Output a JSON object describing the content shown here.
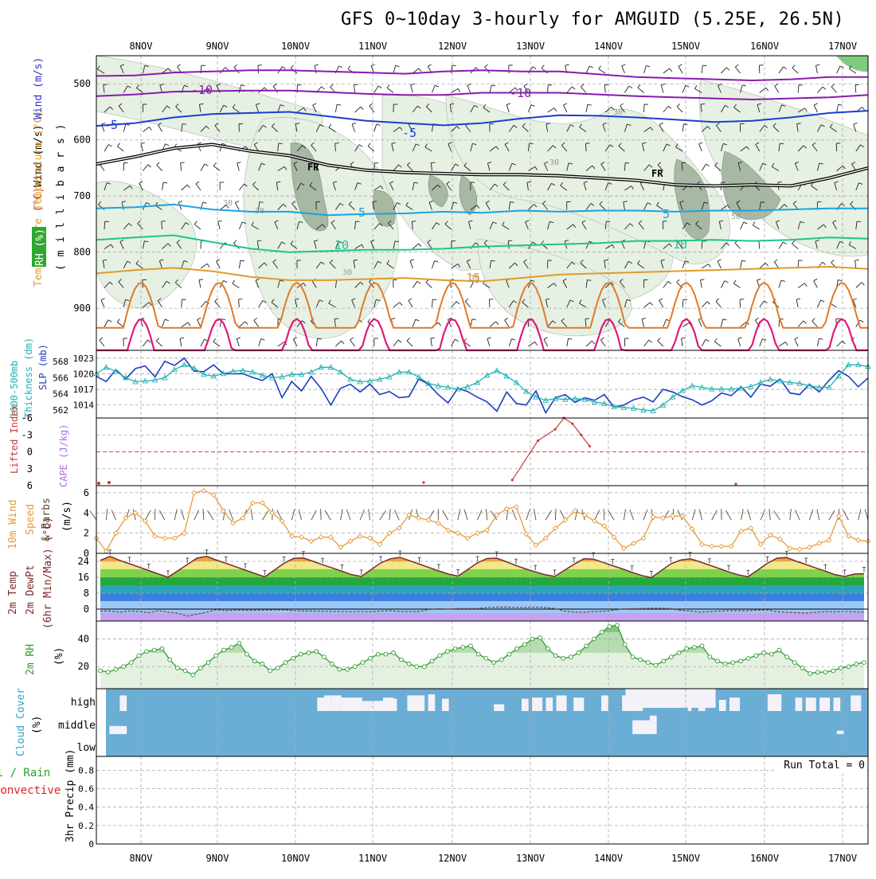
{
  "title": "GFS 0~10day 3-hourly for AMGUID (5.25E, 26.5N)",
  "chart_data": [
    {
      "id": "upper_air",
      "type": "contour",
      "x_labels": [
        "8NOV",
        "9NOV",
        "10NOV",
        "11NOV",
        "12NOV",
        "13NOV",
        "14NOV",
        "15NOV",
        "16NOV",
        "17NOV"
      ],
      "ylabel_parts": [
        "RH (%)",
        "Temperature (°C)",
        "Wind (m/s)",
        "( m i l l i b a r s )"
      ],
      "ylim": [
        975,
        450
      ],
      "yticks": [
        500,
        600,
        700,
        800,
        900
      ],
      "colors": {
        "rh_light": "#e6f0e3",
        "rh_mid": "#c4d8c0",
        "rh_dark": "#a7b8a3"
      },
      "rh_labels": [
        "30",
        "30",
        "30",
        "30",
        "30",
        "30",
        "50"
      ],
      "isotherms": [
        {
          "label": "-10",
          "color": "#8a1ab0",
          "values": [
            486,
            485,
            480,
            478,
            476,
            476,
            478,
            480,
            482,
            478,
            476,
            478,
            478,
            483,
            488,
            490,
            492,
            494,
            492,
            488,
            488
          ]
        },
        {
          "label": "-10",
          "color": "#8a1ab0",
          "values": [
            522,
            519,
            514,
            513,
            512,
            512,
            515,
            518,
            520,
            520,
            516,
            516,
            516,
            519,
            522,
            524,
            526,
            528,
            526,
            524,
            520
          ]
        },
        {
          "label": "-5",
          "color": "#1c3ed0",
          "values": [
            575,
            570,
            560,
            554,
            552,
            550,
            558,
            566,
            570,
            574,
            570,
            562,
            556,
            557,
            560,
            564,
            568,
            566,
            560,
            552,
            548
          ]
        },
        {
          "label": "FR",
          "color": "#000000",
          "values": [
            643,
            630,
            615,
            608,
            620,
            628,
            645,
            654,
            658,
            660,
            662,
            662,
            664,
            668,
            672,
            680,
            682,
            680,
            682,
            668,
            650
          ]
        },
        {
          "label": "5",
          "color": "#1aa3e0",
          "values": [
            722,
            720,
            715,
            724,
            728,
            728,
            734,
            732,
            731,
            728,
            730,
            726,
            728,
            726,
            726,
            728,
            726,
            726,
            724,
            722,
            722
          ]
        },
        {
          "label": "10",
          "color": "#1ec48e",
          "values": [
            778,
            774,
            770,
            782,
            794,
            800,
            798,
            796,
            796,
            794,
            790,
            788,
            786,
            784,
            780,
            780,
            778,
            780,
            778,
            774,
            776
          ]
        },
        {
          "label": "15",
          "color": "#e09a2a",
          "values": [
            838,
            832,
            828,
            834,
            844,
            850,
            850,
            848,
            846,
            850,
            852,
            846,
            840,
            838,
            836,
            834,
            832,
            830,
            828,
            826,
            830
          ]
        }
      ]
    },
    {
      "id": "slp_thickness",
      "type": "line",
      "ylabel_parts": [
        "1000-500mb",
        "Thickness (dm)",
        "SLP (mb)"
      ],
      "slp_ticks": [
        1014,
        1017,
        1020,
        1023
      ],
      "slp_range": [
        1011.5,
        1024.5
      ],
      "thk_ticks": [
        562,
        564,
        566,
        568
      ],
      "thk_range": [
        561,
        569.4
      ],
      "series": [
        {
          "name": "SLP",
          "color": "#1a3fc0",
          "values": [
            1019.5,
            1018.5,
            1020.8,
            1019,
            1021,
            1021.5,
            1019.4,
            1022.4,
            1021.6,
            1023,
            1020.5,
            1020.4,
            1021.7,
            1020,
            1020,
            1020,
            1019.3,
            1018.7,
            1020,
            1015.4,
            1018.5,
            1016.7,
            1019.5,
            1017.2,
            1014,
            1017.2,
            1018,
            1016.5,
            1018,
            1016,
            1016.6,
            1015.4,
            1015.6,
            1019,
            1018,
            1016,
            1014.4,
            1017.2,
            1016.6,
            1015.5,
            1014.6,
            1012.8,
            1016.5,
            1014.3,
            1014,
            1016.7,
            1012.5,
            1015.4,
            1016,
            1014.5,
            1015.4,
            1014.9,
            1016,
            1013.6,
            1014,
            1015,
            1015.5,
            1014.6,
            1017,
            1016.5,
            1015.6,
            1015,
            1014,
            1014.8,
            1016.3,
            1015.8,
            1017.5,
            1015.5,
            1018,
            1017.6,
            1019,
            1016.3,
            1016,
            1018,
            1016.5,
            1018.7,
            1020.6,
            1019.5,
            1017.5,
            1019.2
          ]
        },
        {
          "name": "Thickness",
          "color": "#22b2b2",
          "values": [
            566.5,
            567.3,
            566.8,
            566.0,
            565.5,
            565.6,
            565.7,
            566.0,
            567.0,
            567.6,
            567.2,
            566.4,
            566.2,
            566.5,
            566.8,
            566.9,
            566.7,
            566.3,
            566.0,
            566.1,
            566.4,
            566.4,
            566.7,
            567.3,
            567.3,
            566.7,
            565.8,
            565.5,
            565.6,
            565.8,
            566.1,
            566.7,
            566.7,
            566.1,
            565.3,
            565.0,
            564.8,
            564.6,
            564.9,
            565.4,
            566.3,
            566.9,
            566.2,
            565.4,
            564.3,
            563.6,
            563.2,
            563.4,
            563.3,
            563.4,
            563.3,
            563.0,
            562.8,
            562.4,
            562.3,
            562.2,
            562.0,
            561.9,
            562.6,
            563.6,
            564.4,
            565.0,
            564.8,
            564.6,
            564.6,
            564.6,
            564.7,
            564.9,
            565.4,
            565.8,
            565.6,
            565.4,
            565.3,
            565.0,
            564.8,
            564.8,
            566.2,
            567.6,
            567.6,
            567.4
          ]
        }
      ]
    },
    {
      "id": "cape_li",
      "type": "line",
      "ylabel_parts": [
        "CAPE (J/kg)",
        "Lifted Index"
      ],
      "li_ticks": [
        "-6",
        "-3",
        "0",
        "3",
        "6"
      ],
      "li_range": [
        -6,
        6
      ],
      "li_curve": [
        [
          -6,
          5
        ],
        [
          -3,
          -2
        ],
        [
          -1,
          -4
        ],
        [
          0,
          -6
        ],
        [
          1,
          -5
        ],
        [
          2,
          -3
        ],
        [
          3,
          -1
        ]
      ],
      "li_note": "mostly positive (>6), brief dip near 13NOV 18Z",
      "colors": {
        "cape": "#b070e0",
        "li": "#c83a3a"
      }
    },
    {
      "id": "wind10m",
      "type": "line",
      "ylabel_parts": [
        "10m Wind",
        "Speed",
        "& Barbs",
        "(m/s)"
      ],
      "yticks": [
        0,
        2,
        4,
        6
      ],
      "ylim": [
        0,
        6.7
      ],
      "series": [
        {
          "name": "speed",
          "color": "#e69a3a",
          "values": [
            1.5,
            0.2,
            2.0,
            3.5,
            4.0,
            3.2,
            1.7,
            1.5,
            1.5,
            2.0,
            6.0,
            6.2,
            5.8,
            4.2,
            3.0,
            3.5,
            5.0,
            5.0,
            4.0,
            3.2,
            1.7,
            1.6,
            1.2,
            1.6,
            1.6,
            0.6,
            1.2,
            1.7,
            1.5,
            0.9,
            2.0,
            2.5,
            3.8,
            3.5,
            3.3,
            3.0,
            2.3,
            2.0,
            1.5,
            2.0,
            2.3,
            3.8,
            4.4,
            4.6,
            1.9,
            0.8,
            1.5,
            2.5,
            3.3,
            4.2,
            3.8,
            3.2,
            2.7,
            1.6,
            0.5,
            1.0,
            1.5,
            3.6,
            3.5,
            3.7,
            3.7,
            2.4,
            0.9,
            0.7,
            0.7,
            0.7,
            2.2,
            2.5,
            0.9,
            1.8,
            1.4,
            0.5,
            0.4,
            0.6,
            1.0,
            1.3,
            3.7,
            1.7,
            1.3,
            1.2
          ]
        }
      ]
    },
    {
      "id": "temp2m",
      "type": "area",
      "ylabel_parts": [
        "2m Temp",
        "2m DewPt",
        "(6hr Min/Max) (°C)"
      ],
      "yticks": [
        0,
        8,
        16,
        24
      ],
      "ylim": [
        -6,
        28
      ],
      "bands": [
        {
          "from": -6,
          "to": -2,
          "color": "#c6a2f0"
        },
        {
          "from": -2,
          "to": 4,
          "color": "#9bc8f7"
        },
        {
          "from": 4,
          "to": 8,
          "color": "#3b7fe0"
        },
        {
          "from": 8,
          "to": 12,
          "color": "#2aa3b8"
        },
        {
          "from": 12,
          "to": 16,
          "color": "#23a83c"
        },
        {
          "from": 16,
          "to": 20,
          "color": "#7fd24b"
        },
        {
          "from": 20,
          "to": 24,
          "color": "#f0e88a"
        },
        {
          "from": 24,
          "to": 28,
          "color": "#f0a442"
        }
      ],
      "temp": [
        24.5,
        26.5,
        24.5,
        22.8,
        21.1,
        19.4,
        17.7,
        16.0,
        19.2,
        22.4,
        25.6,
        26.5,
        24.6,
        23.0,
        21.3,
        19.6,
        17.9,
        16.2,
        19.6,
        23.0,
        25.5,
        25.7,
        24.0,
        22.3,
        20.7,
        19.0,
        17.3,
        16.4,
        19.8,
        23.2,
        25.3,
        26.0,
        24.3,
        22.6,
        20.9,
        19.2,
        17.6,
        16.6,
        19.9,
        23.2,
        25.4,
        25.6,
        23.8,
        21.9,
        20.2,
        18.7,
        17.3,
        16.4,
        19.5,
        22.5,
        25.3,
        25.1,
        23.5,
        21.8,
        20.2,
        18.5,
        16.9,
        15.8,
        19.3,
        22.7,
        24.6,
        25.3,
        23.8,
        22.1,
        20.4,
        18.7,
        17.2,
        16.3,
        19.6,
        23.0,
        25.6,
        25.9,
        24.0,
        22.4,
        20.7,
        19.1,
        17.3,
        16.4,
        17.6,
        17.8
      ],
      "dew": [
        -1,
        -1,
        -1.5,
        -1,
        -1.2,
        -1.8,
        -0.8,
        -1.5,
        -2,
        -3.5,
        -2.5,
        -1.5,
        -0.3,
        -0.8,
        -0.5,
        -0.6,
        -0.6,
        -0.5,
        -0.4,
        -0.4,
        -0.7,
        -1,
        -1,
        -1.1,
        -1.2,
        -1.2,
        -1.3,
        -1.2,
        -1.3,
        -1,
        -0.8,
        -1.2,
        -1.2,
        -1.2,
        -0.2,
        0.2,
        0,
        0.3,
        0.3,
        0.3,
        0.8,
        1,
        1,
        0.9,
        0.8,
        1,
        0.8,
        0.3,
        -1,
        -1.5,
        -1.6,
        -1.2,
        -1.2,
        -0.6,
        0.1,
        0.2,
        0.3,
        0.4,
        0.4,
        0.3,
        -0.6,
        -1,
        -1.5,
        -1.3,
        -1,
        -0.8,
        -0.8,
        -0.8,
        -0.5,
        -0.4,
        -1.3,
        -1.6,
        -1.8,
        -2,
        -1.6,
        -1.3,
        -1.4,
        -1.2,
        -1.4,
        -1.5
      ]
    },
    {
      "id": "rh2m",
      "type": "area",
      "ylabel_parts": [
        "2m RH",
        "(%)"
      ],
      "yticks": [
        20,
        40
      ],
      "ylim": [
        4,
        53
      ],
      "colors": {
        "rh_light": "#e4f1e1",
        "rh_mid": "#b7dcb2",
        "rh_dark": "#86c47f",
        "line": "#2e9a2e"
      },
      "values": [
        17,
        16,
        18,
        20,
        23,
        28,
        31,
        32,
        33,
        25,
        19,
        17,
        14,
        19,
        23,
        28,
        32,
        34,
        37,
        29,
        24,
        22,
        17,
        19,
        23,
        26,
        29,
        30,
        31,
        27,
        22,
        18,
        18,
        20,
        23,
        26,
        29,
        29,
        30,
        25,
        22,
        20,
        20,
        24,
        28,
        31,
        33,
        34,
        35,
        29,
        26,
        23,
        25,
        29,
        33,
        36,
        40,
        41,
        33,
        28,
        26,
        27,
        30,
        35,
        40,
        45,
        49,
        50,
        36,
        27,
        25,
        23,
        21,
        24,
        27,
        30,
        33,
        34,
        35,
        27,
        24,
        22,
        23,
        24,
        26,
        28,
        30,
        29,
        32,
        27,
        23,
        19,
        15,
        16,
        16,
        17,
        19,
        20,
        22,
        23
      ]
    },
    {
      "id": "cloud",
      "type": "heatmap",
      "ylabel_parts": [
        "Cloud Cover",
        "(%)"
      ],
      "levels": [
        "high",
        "middle",
        "low"
      ],
      "colors": {
        "cloud": "#6aaed6",
        "clear": "#f4f2f8"
      },
      "high_gaps": [
        [
          4,
          2,
          0.7
        ],
        [
          61,
          3,
          0.6
        ],
        [
          63,
          2,
          0.7
        ],
        [
          65,
          3,
          0.7
        ],
        [
          68,
          2,
          0.6
        ],
        [
          70,
          4,
          0.6
        ],
        [
          74,
          2,
          0.45
        ],
        [
          76,
          3,
          0.45
        ],
        [
          78,
          2,
          0.45
        ],
        [
          80,
          3,
          0.6
        ],
        [
          82,
          2,
          0.55
        ],
        [
          87,
          5,
          0.7
        ],
        [
          93,
          2,
          0.75
        ],
        [
          97,
          2,
          0.55
        ],
        [
          112,
          3,
          0.3
        ],
        [
          120,
          2,
          0.55
        ],
        [
          123,
          3,
          0.6
        ],
        [
          127,
          2,
          0.6
        ],
        [
          130,
          3,
          0.7
        ],
        [
          135,
          3,
          0.6
        ],
        [
          143,
          2,
          0.7
        ],
        [
          149,
          6,
          0.7
        ],
        [
          168,
          1,
          0.5
        ],
        [
          171,
          2,
          0.6
        ],
        [
          177,
          2,
          0.5
        ],
        [
          180,
          3,
          0.6
        ],
        [
          191,
          4,
          0.75
        ],
        [
          199,
          2,
          0.6
        ],
        [
          202,
          3,
          0.6
        ],
        [
          206,
          3,
          0.6
        ],
        [
          210,
          2,
          0.6
        ],
        [
          215,
          3,
          0.7
        ]
      ],
      "mid_gaps": [
        [
          1,
          5,
          0.35
        ],
        [
          152,
          5,
          0.6
        ],
        [
          157,
          2,
          0.8
        ],
        [
          211,
          2,
          0.15
        ]
      ]
    },
    {
      "id": "precip",
      "type": "bar",
      "ylabel_parts": [
        "Total / Rain",
        "Convective",
        "3hr Precip (mm)"
      ],
      "yticks": [
        0,
        0.2,
        0.4,
        0.6,
        0.8
      ],
      "ylim": [
        0,
        0.95
      ],
      "run_total": "Run Total = 0",
      "values": [],
      "colors": {
        "total": "#2aa12a",
        "conv": "#e02020"
      }
    }
  ]
}
